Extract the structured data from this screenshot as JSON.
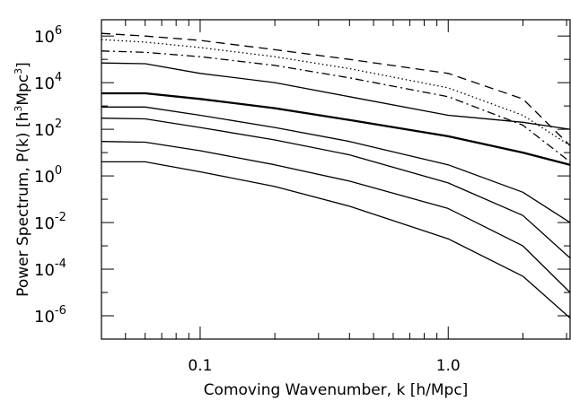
{
  "chart_data": {
    "type": "line",
    "title": "",
    "xlabel": "Comoving Wavenumber, k [h/Mpc]",
    "ylabel_prefix": "Power Spectrum, P(k) [h",
    "ylabel_sup": "3",
    "ylabel_mid": "Mpc",
    "ylabel_sup2": "3",
    "ylabel_suffix": "]",
    "xscale": "log",
    "yscale": "log",
    "xlim": [
      0.04,
      3.1
    ],
    "ylim": [
      1e-07,
      5000000.0
    ],
    "grid": false,
    "legend": "none",
    "xticks": [
      {
        "value": 0.1,
        "label": "0.1"
      },
      {
        "value": 1.0,
        "label": "1.0"
      }
    ],
    "yticks": [
      {
        "value": 1000000.0,
        "base": "10",
        "exp": "6"
      },
      {
        "value": 10000.0,
        "base": "10",
        "exp": "4"
      },
      {
        "value": 100.0,
        "base": "10",
        "exp": "2"
      },
      {
        "value": 1,
        "base": "10",
        "exp": "0"
      },
      {
        "value": 0.01,
        "base": "10",
        "exp": "-2"
      },
      {
        "value": 0.0001,
        "base": "10",
        "exp": "-4"
      },
      {
        "value": 1e-06,
        "base": "10",
        "exp": "-6"
      }
    ],
    "x": [
      0.04,
      0.06,
      0.1,
      0.2,
      0.4,
      1.0,
      2.0,
      3.1
    ],
    "series": [
      {
        "style": "dashed",
        "width": 1.3,
        "values": [
          1300000.0,
          1000000.0,
          650000.0,
          260000.0,
          100000.0,
          25000.0,
          2000.0,
          20.0
        ]
      },
      {
        "style": "dotted",
        "width": 1.3,
        "values": [
          700000.0,
          550000.0,
          320000.0,
          130000.0,
          40000.0,
          6000.0,
          400.0,
          20.0
        ]
      },
      {
        "style": "dashdot",
        "width": 1.3,
        "values": [
          230000.0,
          200000.0,
          130000.0,
          55000.0,
          16000.0,
          2500.0,
          150.0,
          4.0
        ]
      },
      {
        "style": "solid",
        "width": 1.3,
        "values": [
          70000.0,
          65000.0,
          25000.0,
          10000.0,
          2500.0,
          400.0,
          200.0,
          100.0
        ]
      },
      {
        "style": "solid",
        "width": 2.3,
        "values": [
          3500.0,
          3500.0,
          2000.0,
          800.0,
          250.0,
          50.0,
          10.0,
          3.0
        ]
      },
      {
        "style": "solid",
        "width": 1.3,
        "values": [
          900.0,
          900.0,
          400.0,
          120.0,
          30.0,
          3.0,
          0.2,
          0.01
        ]
      },
      {
        "style": "solid",
        "width": 1.3,
        "values": [
          300.0,
          280.0,
          120.0,
          35.0,
          8.0,
          0.5,
          0.02,
          0.0003
        ]
      },
      {
        "style": "solid",
        "width": 1.3,
        "values": [
          30.0,
          28.0,
          12.0,
          3.0,
          0.6,
          0.04,
          0.001,
          1e-05
        ]
      },
      {
        "style": "solid",
        "width": 1.3,
        "values": [
          4.0,
          4.0,
          1.5,
          0.35,
          0.05,
          0.002,
          5e-05,
          8e-07
        ]
      }
    ]
  }
}
